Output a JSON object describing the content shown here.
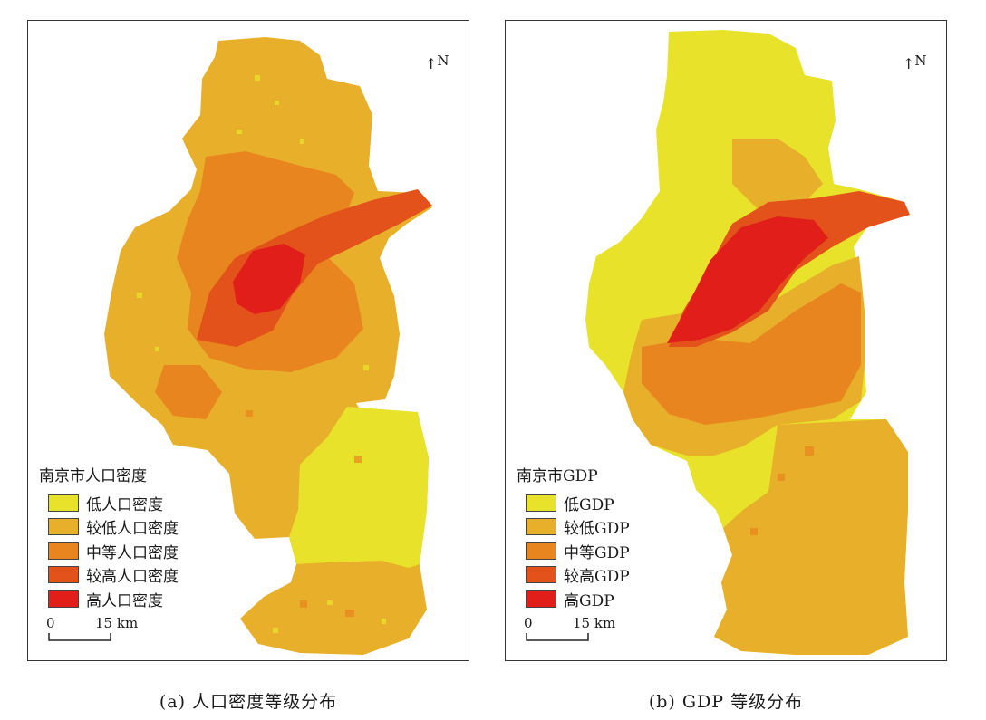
{
  "panels": [
    {
      "north": {
        "arrow": "↑",
        "letter": "N"
      },
      "legend": {
        "title": "南京市人口密度",
        "items": [
          {
            "label": "低人口密度",
            "color": "#e8e32a"
          },
          {
            "label": "较低人口密度",
            "color": "#e8b02a"
          },
          {
            "label": "中等人口密度",
            "color": "#e8851e"
          },
          {
            "label": "较高人口密度",
            "color": "#e2521a"
          },
          {
            "label": "高人口密度",
            "color": "#e11e1a"
          }
        ]
      },
      "scalebar": {
        "zero": "0",
        "distance": "15 km"
      },
      "caption": "(a) 人口密度等级分布"
    },
    {
      "north": {
        "arrow": "↑",
        "letter": "N"
      },
      "legend": {
        "title": "南京市GDP",
        "items": [
          {
            "label": "低GDP",
            "color": "#e8e32a"
          },
          {
            "label": "较低GDP",
            "color": "#e8b02a"
          },
          {
            "label": "中等GDP",
            "color": "#e8851e"
          },
          {
            "label": "较高GDP",
            "color": "#e2521a"
          },
          {
            "label": "高GDP",
            "color": "#e11e1a"
          }
        ]
      },
      "scalebar": {
        "zero": "0",
        "distance": "15 km"
      },
      "caption": "(b) GDP 等级分布"
    }
  ]
}
